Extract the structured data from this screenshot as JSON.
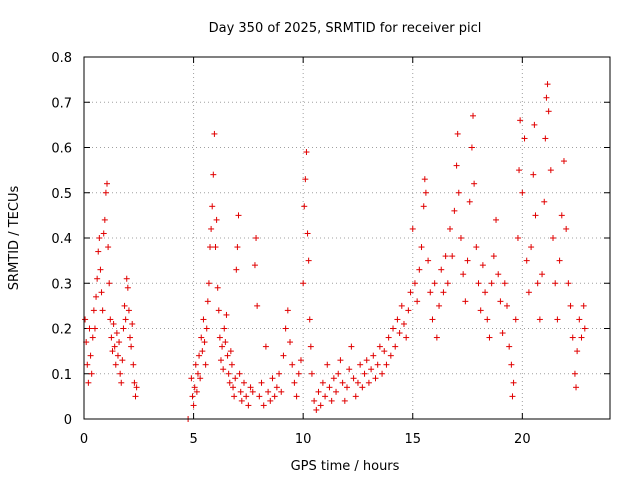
{
  "chart_data": {
    "type": "scatter",
    "title": "Day 350 of 2025, SRMTID for receiver picl",
    "xlabel": "GPS time / hours",
    "ylabel": "SRMTID / TECUs",
    "xlim": [
      0,
      24
    ],
    "ylim": [
      0,
      0.8
    ],
    "x_ticks": [
      0,
      5,
      10,
      15,
      20
    ],
    "x_tick_labels": [
      "0",
      "5",
      "10",
      "15",
      "20"
    ],
    "y_ticks": [
      0,
      0.1,
      0.2,
      0.3,
      0.4,
      0.5,
      0.6,
      0.7,
      0.8
    ],
    "y_tick_labels": [
      "0",
      "0.1",
      "0.2",
      "0.3",
      "0.4",
      "0.5",
      "0.6",
      "0.7",
      "0.8"
    ],
    "grid": true,
    "marker": "+",
    "marker_color": "#e00000",
    "series": [
      {
        "name": "SRMTID",
        "points": [
          [
            0.05,
            0.22
          ],
          [
            0.1,
            0.17
          ],
          [
            0.15,
            0.12
          ],
          [
            0.2,
            0.08
          ],
          [
            0.25,
            0.2
          ],
          [
            0.3,
            0.14
          ],
          [
            0.35,
            0.1
          ],
          [
            0.4,
            0.18
          ],
          [
            0.45,
            0.24
          ],
          [
            0.5,
            0.2
          ],
          [
            0.55,
            0.27
          ],
          [
            0.6,
            0.31
          ],
          [
            0.65,
            0.37
          ],
          [
            0.7,
            0.4
          ],
          [
            0.75,
            0.33
          ],
          [
            0.8,
            0.28
          ],
          [
            0.85,
            0.24
          ],
          [
            0.9,
            0.41
          ],
          [
            0.95,
            0.44
          ],
          [
            1.0,
            0.5
          ],
          [
            1.05,
            0.52
          ],
          [
            1.1,
            0.38
          ],
          [
            1.15,
            0.3
          ],
          [
            1.2,
            0.22
          ],
          [
            1.25,
            0.18
          ],
          [
            1.3,
            0.15
          ],
          [
            1.35,
            0.21
          ],
          [
            1.4,
            0.16
          ],
          [
            1.45,
            0.12
          ],
          [
            1.5,
            0.19
          ],
          [
            1.55,
            0.14
          ],
          [
            1.6,
            0.17
          ],
          [
            1.65,
            0.1
          ],
          [
            1.7,
            0.08
          ],
          [
            1.75,
            0.13
          ],
          [
            1.8,
            0.2
          ],
          [
            1.85,
            0.25
          ],
          [
            1.9,
            0.22
          ],
          [
            1.95,
            0.31
          ],
          [
            2.0,
            0.29
          ],
          [
            2.05,
            0.24
          ],
          [
            2.1,
            0.18
          ],
          [
            2.15,
            0.16
          ],
          [
            2.2,
            0.21
          ],
          [
            2.25,
            0.12
          ],
          [
            2.3,
            0.08
          ],
          [
            2.35,
            0.05
          ],
          [
            2.4,
            0.07
          ],
          [
            4.75,
            0.0
          ],
          [
            4.9,
            0.09
          ],
          [
            4.95,
            0.05
          ],
          [
            5.0,
            0.03
          ],
          [
            5.05,
            0.07
          ],
          [
            5.1,
            0.12
          ],
          [
            5.15,
            0.06
          ],
          [
            5.2,
            0.1
          ],
          [
            5.25,
            0.14
          ],
          [
            5.3,
            0.09
          ],
          [
            5.35,
            0.18
          ],
          [
            5.4,
            0.15
          ],
          [
            5.45,
            0.22
          ],
          [
            5.5,
            0.17
          ],
          [
            5.55,
            0.12
          ],
          [
            5.6,
            0.2
          ],
          [
            5.65,
            0.26
          ],
          [
            5.7,
            0.3
          ],
          [
            5.75,
            0.38
          ],
          [
            5.8,
            0.42
          ],
          [
            5.85,
            0.47
          ],
          [
            5.9,
            0.54
          ],
          [
            5.95,
            0.63
          ],
          [
            6.0,
            0.38
          ],
          [
            6.05,
            0.44
          ],
          [
            6.1,
            0.29
          ],
          [
            6.15,
            0.24
          ],
          [
            6.2,
            0.18
          ],
          [
            6.25,
            0.13
          ],
          [
            6.3,
            0.16
          ],
          [
            6.35,
            0.11
          ],
          [
            6.4,
            0.2
          ],
          [
            6.45,
            0.17
          ],
          [
            6.5,
            0.23
          ],
          [
            6.55,
            0.14
          ],
          [
            6.6,
            0.1
          ],
          [
            6.65,
            0.08
          ],
          [
            6.7,
            0.15
          ],
          [
            6.75,
            0.12
          ],
          [
            6.8,
            0.07
          ],
          [
            6.85,
            0.05
          ],
          [
            6.9,
            0.09
          ],
          [
            6.95,
            0.33
          ],
          [
            7.0,
            0.38
          ],
          [
            7.05,
            0.45
          ],
          [
            7.1,
            0.1
          ],
          [
            7.15,
            0.06
          ],
          [
            7.2,
            0.04
          ],
          [
            7.3,
            0.08
          ],
          [
            7.4,
            0.05
          ],
          [
            7.5,
            0.03
          ],
          [
            7.6,
            0.07
          ],
          [
            7.7,
            0.06
          ],
          [
            7.8,
            0.34
          ],
          [
            7.85,
            0.4
          ],
          [
            7.9,
            0.25
          ],
          [
            8.0,
            0.05
          ],
          [
            8.1,
            0.08
          ],
          [
            8.2,
            0.03
          ],
          [
            8.3,
            0.16
          ],
          [
            8.4,
            0.06
          ],
          [
            8.5,
            0.04
          ],
          [
            8.6,
            0.09
          ],
          [
            8.7,
            0.05
          ],
          [
            8.8,
            0.07
          ],
          [
            8.9,
            0.1
          ],
          [
            9.0,
            0.06
          ],
          [
            9.1,
            0.14
          ],
          [
            9.2,
            0.2
          ],
          [
            9.3,
            0.24
          ],
          [
            9.4,
            0.17
          ],
          [
            9.5,
            0.12
          ],
          [
            9.6,
            0.08
          ],
          [
            9.7,
            0.05
          ],
          [
            9.8,
            0.1
          ],
          [
            9.9,
            0.13
          ],
          [
            10.0,
            0.3
          ],
          [
            10.05,
            0.47
          ],
          [
            10.1,
            0.53
          ],
          [
            10.15,
            0.59
          ],
          [
            10.2,
            0.41
          ],
          [
            10.25,
            0.35
          ],
          [
            10.3,
            0.22
          ],
          [
            10.35,
            0.16
          ],
          [
            10.4,
            0.1
          ],
          [
            10.5,
            0.04
          ],
          [
            10.6,
            0.02
          ],
          [
            10.7,
            0.06
          ],
          [
            10.8,
            0.03
          ],
          [
            10.9,
            0.08
          ],
          [
            11.0,
            0.05
          ],
          [
            11.1,
            0.12
          ],
          [
            11.2,
            0.07
          ],
          [
            11.3,
            0.04
          ],
          [
            11.4,
            0.09
          ],
          [
            11.5,
            0.06
          ],
          [
            11.6,
            0.1
          ],
          [
            11.7,
            0.13
          ],
          [
            11.8,
            0.08
          ],
          [
            11.9,
            0.04
          ],
          [
            12.0,
            0.07
          ],
          [
            12.1,
            0.11
          ],
          [
            12.2,
            0.16
          ],
          [
            12.3,
            0.09
          ],
          [
            12.4,
            0.05
          ],
          [
            12.5,
            0.08
          ],
          [
            12.6,
            0.12
          ],
          [
            12.7,
            0.07
          ],
          [
            12.8,
            0.1
          ],
          [
            12.9,
            0.13
          ],
          [
            13.0,
            0.08
          ],
          [
            13.1,
            0.11
          ],
          [
            13.2,
            0.14
          ],
          [
            13.3,
            0.09
          ],
          [
            13.4,
            0.12
          ],
          [
            13.5,
            0.16
          ],
          [
            13.6,
            0.1
          ],
          [
            13.7,
            0.15
          ],
          [
            13.8,
            0.12
          ],
          [
            13.9,
            0.18
          ],
          [
            14.0,
            0.14
          ],
          [
            14.1,
            0.2
          ],
          [
            14.2,
            0.16
          ],
          [
            14.3,
            0.22
          ],
          [
            14.4,
            0.19
          ],
          [
            14.5,
            0.25
          ],
          [
            14.6,
            0.21
          ],
          [
            14.7,
            0.18
          ],
          [
            14.8,
            0.24
          ],
          [
            14.9,
            0.28
          ],
          [
            15.0,
            0.42
          ],
          [
            15.1,
            0.3
          ],
          [
            15.2,
            0.26
          ],
          [
            15.3,
            0.33
          ],
          [
            15.4,
            0.38
          ],
          [
            15.5,
            0.47
          ],
          [
            15.55,
            0.53
          ],
          [
            15.6,
            0.5
          ],
          [
            15.7,
            0.35
          ],
          [
            15.8,
            0.28
          ],
          [
            15.9,
            0.22
          ],
          [
            16.0,
            0.3
          ],
          [
            16.1,
            0.18
          ],
          [
            16.2,
            0.25
          ],
          [
            16.3,
            0.33
          ],
          [
            16.4,
            0.28
          ],
          [
            16.5,
            0.36
          ],
          [
            16.6,
            0.3
          ],
          [
            16.7,
            0.42
          ],
          [
            16.8,
            0.36
          ],
          [
            16.9,
            0.46
          ],
          [
            17.0,
            0.56
          ],
          [
            17.05,
            0.63
          ],
          [
            17.1,
            0.5
          ],
          [
            17.2,
            0.4
          ],
          [
            17.3,
            0.32
          ],
          [
            17.4,
            0.26
          ],
          [
            17.5,
            0.35
          ],
          [
            17.6,
            0.48
          ],
          [
            17.7,
            0.6
          ],
          [
            17.75,
            0.67
          ],
          [
            17.8,
            0.52
          ],
          [
            17.9,
            0.38
          ],
          [
            18.0,
            0.3
          ],
          [
            18.1,
            0.24
          ],
          [
            18.2,
            0.34
          ],
          [
            18.3,
            0.28
          ],
          [
            18.4,
            0.22
          ],
          [
            18.5,
            0.18
          ],
          [
            18.6,
            0.3
          ],
          [
            18.7,
            0.36
          ],
          [
            18.8,
            0.44
          ],
          [
            18.9,
            0.32
          ],
          [
            19.0,
            0.26
          ],
          [
            19.1,
            0.19
          ],
          [
            19.2,
            0.3
          ],
          [
            19.3,
            0.25
          ],
          [
            19.4,
            0.16
          ],
          [
            19.5,
            0.12
          ],
          [
            19.55,
            0.05
          ],
          [
            19.6,
            0.08
          ],
          [
            19.7,
            0.22
          ],
          [
            19.8,
            0.4
          ],
          [
            19.85,
            0.55
          ],
          [
            19.9,
            0.66
          ],
          [
            20.0,
            0.5
          ],
          [
            20.1,
            0.62
          ],
          [
            20.2,
            0.35
          ],
          [
            20.3,
            0.28
          ],
          [
            20.4,
            0.38
          ],
          [
            20.5,
            0.54
          ],
          [
            20.55,
            0.65
          ],
          [
            20.6,
            0.45
          ],
          [
            20.7,
            0.3
          ],
          [
            20.8,
            0.22
          ],
          [
            20.9,
            0.32
          ],
          [
            21.0,
            0.48
          ],
          [
            21.05,
            0.62
          ],
          [
            21.1,
            0.71
          ],
          [
            21.15,
            0.74
          ],
          [
            21.2,
            0.68
          ],
          [
            21.3,
            0.55
          ],
          [
            21.4,
            0.4
          ],
          [
            21.5,
            0.3
          ],
          [
            21.6,
            0.22
          ],
          [
            21.7,
            0.35
          ],
          [
            21.8,
            0.45
          ],
          [
            21.9,
            0.57
          ],
          [
            22.0,
            0.42
          ],
          [
            22.1,
            0.3
          ],
          [
            22.2,
            0.25
          ],
          [
            22.3,
            0.18
          ],
          [
            22.4,
            0.1
          ],
          [
            22.45,
            0.07
          ],
          [
            22.5,
            0.15
          ],
          [
            22.6,
            0.22
          ],
          [
            22.7,
            0.18
          ],
          [
            22.8,
            0.25
          ],
          [
            22.85,
            0.2
          ]
        ]
      }
    ]
  }
}
